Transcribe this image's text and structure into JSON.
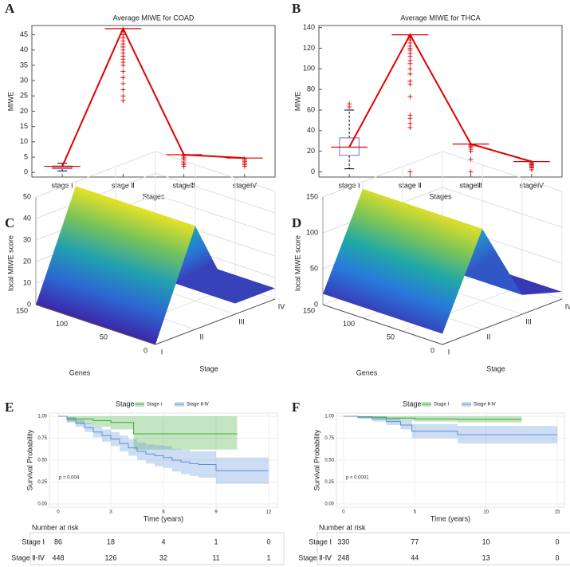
{
  "chart_data": [
    {
      "type": "box",
      "panel": "A",
      "title": "Average MIWE for COAD",
      "xlabel": "Stages",
      "ylabel": "MIWE",
      "categories": [
        "stage Ⅰ",
        "stage Ⅱ",
        "stageⅢ",
        "stageⅣ"
      ],
      "line": {
        "color": "#e00000",
        "values": [
          2,
          47,
          5.8,
          4.7
        ]
      },
      "boxes": [
        {
          "whislo": 0.5,
          "q1": 1.2,
          "med": 1.6,
          "q3": 2.1,
          "whishi": 3
        },
        null,
        null,
        null
      ],
      "outliers": [
        [],
        [
          23.5,
          25,
          27,
          29,
          31,
          33,
          35,
          36,
          37,
          38,
          39,
          40,
          41,
          42,
          43,
          44,
          45,
          46
        ],
        [
          2,
          2.5,
          3,
          3.5,
          4,
          4.5,
          5,
          5.5
        ],
        [
          2,
          2.5,
          3,
          3.5,
          4,
          4.5
        ]
      ],
      "box_color": "#7b68c8",
      "ylim": [
        -1.5,
        48
      ],
      "yticks": [
        0,
        5,
        10,
        15,
        20,
        25,
        30,
        35,
        40,
        45
      ]
    },
    {
      "type": "box",
      "panel": "B",
      "title": "Average MIWE for THCA",
      "xlabel": "Stages",
      "ylabel": "MIWE",
      "categories": [
        "stage Ⅰ",
        "stage Ⅱ",
        "stageⅢ",
        "stageⅣ"
      ],
      "line": {
        "color": "#e00000",
        "values": [
          24,
          133,
          27,
          10
        ]
      },
      "boxes": [
        {
          "whislo": 3,
          "q1": 16,
          "med": 24,
          "q3": 33,
          "whishi": 60
        },
        null,
        null,
        null
      ],
      "outliers": [
        [
          63,
          66
        ],
        [
          0,
          43,
          47,
          52,
          55,
          73,
          85,
          88,
          95,
          100,
          105,
          108,
          112,
          115,
          118,
          120,
          122,
          125,
          128,
          130,
          132
        ],
        [
          0,
          12,
          20,
          22,
          24,
          25,
          26
        ],
        [
          2,
          4,
          5,
          6,
          7,
          8,
          9
        ]
      ],
      "box_color": "#7b68c8",
      "ylim": [
        -5,
        142
      ],
      "yticks": [
        0,
        20,
        40,
        60,
        80,
        100,
        120,
        140
      ]
    },
    {
      "type": "surface",
      "panel": "C",
      "zlabel": "local MIWE score",
      "xlabel": "Genes",
      "ylabel": "Stage",
      "categories": [
        "I",
        "II",
        "III",
        "IV"
      ],
      "values": [
        0,
        48,
        5,
        5
      ],
      "xlim": [
        0,
        150
      ],
      "xticks": [
        0,
        50,
        100,
        150
      ],
      "zlim": [
        0,
        50
      ],
      "zticks": [
        0,
        10,
        20,
        30,
        40,
        50
      ]
    },
    {
      "type": "surface",
      "panel": "D",
      "zlabel": "local MIWE score",
      "xlabel": "Genes",
      "ylabel": "Stage",
      "categories": [
        "I",
        "II",
        "III",
        "IV"
      ],
      "values": [
        15,
        140,
        27,
        10
      ],
      "xlim": [
        0,
        150
      ],
      "xticks": [
        0,
        50,
        100,
        150
      ],
      "zlim": [
        0,
        150
      ],
      "zticks": [
        0,
        50,
        100,
        150
      ]
    },
    {
      "type": "km",
      "panel": "E",
      "legend_title": "Stage",
      "xlabel": "Time (years)",
      "ylabel": "Survival Probability",
      "annotation": "p = 0.004",
      "table_title": "Number at risk",
      "xlim": [
        -0.5,
        12.5
      ],
      "xticks": [
        0,
        3,
        6,
        9,
        12
      ],
      "ylim": [
        0,
        1
      ],
      "yticks": [
        {
          "value": 0,
          "label": "0.00"
        },
        {
          "value": 0.25,
          "label": "0.25"
        },
        {
          "value": 0.5,
          "label": "0.50"
        },
        {
          "value": 0.75,
          "label": "0.75"
        },
        {
          "value": 1,
          "label": "1.00"
        }
      ],
      "series": [
        {
          "name": "Stage Ⅰ",
          "color": "#3aaa35",
          "x": [
            0,
            0.5,
            1,
            2,
            3,
            4.3,
            10.2
          ],
          "y": [
            1,
            0.98,
            0.97,
            0.95,
            0.93,
            0.8,
            0.8
          ],
          "lower": [
            1,
            0.94,
            0.91,
            0.88,
            0.85,
            0.62,
            0.62
          ],
          "upper": [
            1,
            1,
            1,
            1,
            1,
            1,
            1
          ],
          "at_risk": [
            86,
            18,
            4,
            1,
            0
          ]
        },
        {
          "name": "Stage Ⅱ-Ⅳ",
          "color": "#5b8fd6",
          "x": [
            0,
            0.5,
            1,
            1.5,
            2,
            2.5,
            3,
            3.5,
            4,
            4.5,
            5,
            5.5,
            6,
            6.5,
            7,
            7.5,
            8,
            9,
            12
          ],
          "y": [
            1,
            0.96,
            0.92,
            0.87,
            0.82,
            0.78,
            0.74,
            0.69,
            0.64,
            0.6,
            0.57,
            0.55,
            0.53,
            0.5,
            0.48,
            0.46,
            0.45,
            0.38,
            0.38
          ],
          "lower": [
            1,
            0.93,
            0.88,
            0.82,
            0.76,
            0.71,
            0.66,
            0.6,
            0.55,
            0.5,
            0.46,
            0.43,
            0.41,
            0.37,
            0.34,
            0.32,
            0.3,
            0.23,
            0.23
          ],
          "upper": [
            1,
            0.99,
            0.96,
            0.92,
            0.88,
            0.85,
            0.82,
            0.78,
            0.74,
            0.7,
            0.68,
            0.67,
            0.66,
            0.63,
            0.62,
            0.6,
            0.6,
            0.53,
            0.53
          ],
          "at_risk": [
            448,
            126,
            32,
            11,
            1
          ]
        }
      ]
    },
    {
      "type": "km",
      "panel": "F",
      "legend_title": "Stage",
      "xlabel": "Time (years)",
      "ylabel": "Survival Probability",
      "annotation": "p < 0.0001",
      "table_title": "Number at risk",
      "xlim": [
        -0.5,
        15.5
      ],
      "xticks": [
        0,
        5,
        10,
        15
      ],
      "ylim": [
        0,
        1
      ],
      "yticks": [
        {
          "value": 0,
          "label": "0.00"
        },
        {
          "value": 0.25,
          "label": "0.25"
        },
        {
          "value": 0.5,
          "label": "0.50"
        },
        {
          "value": 0.75,
          "label": "0.75"
        },
        {
          "value": 1,
          "label": "1.00"
        }
      ],
      "series": [
        {
          "name": "Stage Ⅰ",
          "color": "#3aaa35",
          "x": [
            0,
            1,
            2,
            3,
            5,
            8,
            12.5
          ],
          "y": [
            1,
            0.995,
            0.99,
            0.98,
            0.97,
            0.965,
            0.965
          ],
          "lower": [
            1,
            0.98,
            0.97,
            0.95,
            0.94,
            0.93,
            0.93
          ],
          "upper": [
            1,
            1,
            1,
            1,
            1,
            1,
            1
          ],
          "at_risk": [
            330,
            77,
            10,
            0
          ]
        },
        {
          "name": "Stage Ⅱ-Ⅳ",
          "color": "#5b8fd6",
          "x": [
            0,
            1,
            2,
            3,
            4,
            4.8,
            8,
            15
          ],
          "y": [
            1,
            0.99,
            0.97,
            0.94,
            0.9,
            0.83,
            0.79,
            0.79
          ],
          "lower": [
            1,
            0.97,
            0.94,
            0.9,
            0.85,
            0.75,
            0.69,
            0.69
          ],
          "upper": [
            1,
            1,
            1,
            0.98,
            0.95,
            0.91,
            0.89,
            0.89
          ],
          "at_risk": [
            248,
            44,
            13,
            0
          ]
        }
      ]
    }
  ]
}
